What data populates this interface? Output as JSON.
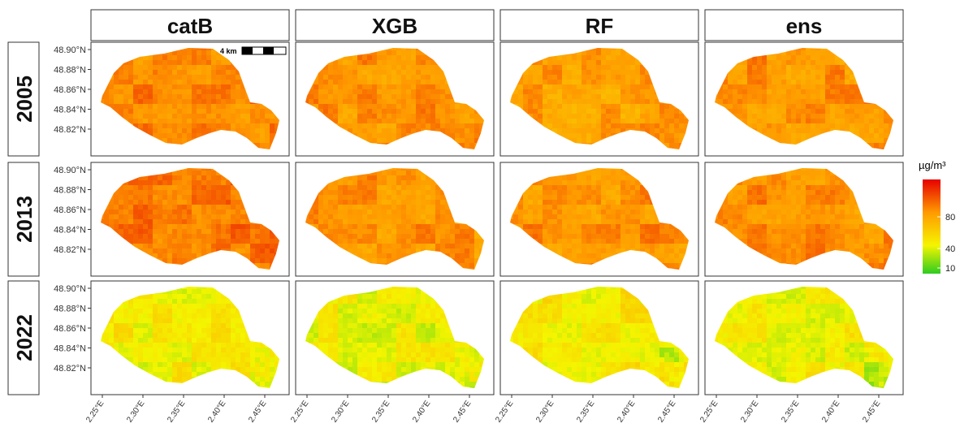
{
  "columns": [
    "catB",
    "XGB",
    "RF",
    "ens"
  ],
  "rows": [
    "2005",
    "2013",
    "2022"
  ],
  "y_ticks": [
    "48.90°N",
    "48.88°N",
    "48.86°N",
    "48.84°N",
    "48.82°N"
  ],
  "x_ticks": [
    "2.25°E",
    "2.30°E",
    "2.35°E",
    "2.40°E",
    "2.45°E"
  ],
  "scalebar": {
    "label": "4 km"
  },
  "legend": {
    "title": "µg/m³",
    "ticks": [
      "80",
      "40",
      "10"
    ],
    "colors": {
      "low": "#2ecc1f",
      "mid": "#f5f500",
      "high": "#e60000"
    }
  },
  "panel_levels": {
    "note_units": "relative pollution level 0-1 shown by fill color",
    "2005": {
      "catB": 0.7,
      "XGB": 0.66,
      "RF": 0.62,
      "ens": 0.66
    },
    "2013": {
      "catB": 0.74,
      "XGB": 0.67,
      "RF": 0.67,
      "ens": 0.68
    },
    "2022": {
      "catB": 0.33,
      "XGB": 0.3,
      "RF": 0.35,
      "ens": 0.32
    }
  }
}
